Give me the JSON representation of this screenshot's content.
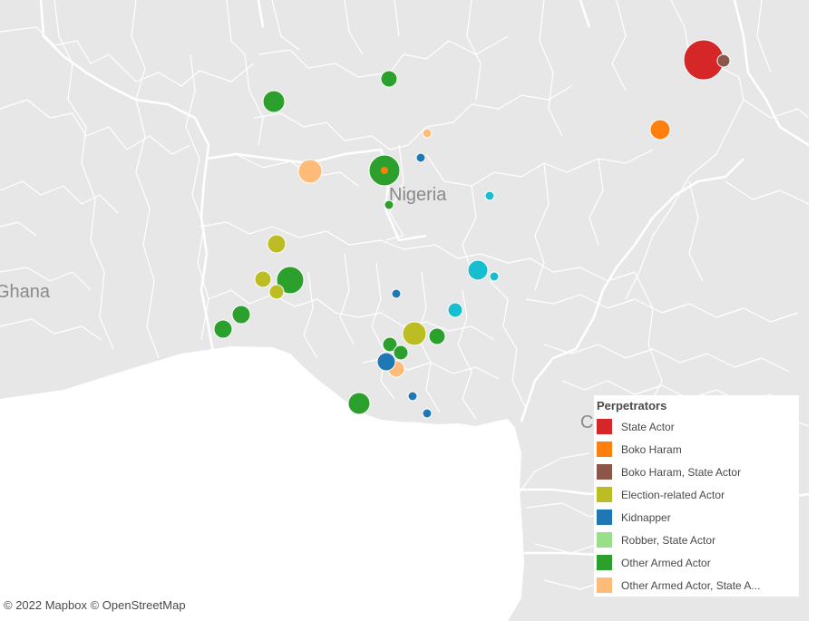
{
  "map": {
    "country_labels": [
      {
        "id": "nigeria",
        "text": "Nigeria"
      },
      {
        "id": "ghana",
        "text": "Ghana"
      },
      {
        "id": "cameroon",
        "text": "Ca"
      }
    ],
    "colors": {
      "land": "#e7e7e7",
      "water": "#ffffff",
      "border": "#ffffff"
    }
  },
  "legend": {
    "title": "Perpetrators",
    "items": [
      {
        "label": "State Actor",
        "color": "#d62728"
      },
      {
        "label": "Boko Haram",
        "color": "#ff7f0e"
      },
      {
        "label": "Boko Haram, State Actor",
        "color": "#8c564b"
      },
      {
        "label": "Election-related Actor",
        "color": "#bcbd22"
      },
      {
        "label": "Kidnapper",
        "color": "#1f77b4"
      },
      {
        "label": "Robber, State Actor",
        "color": "#98df8a"
      },
      {
        "label": "Other Armed Actor",
        "color": "#2ca02c"
      },
      {
        "label": "Other Armed Actor, State A...",
        "color": "#ffbb78"
      }
    ]
  },
  "attribution": "© 2022 Mapbox  © OpenStreetMap"
}
